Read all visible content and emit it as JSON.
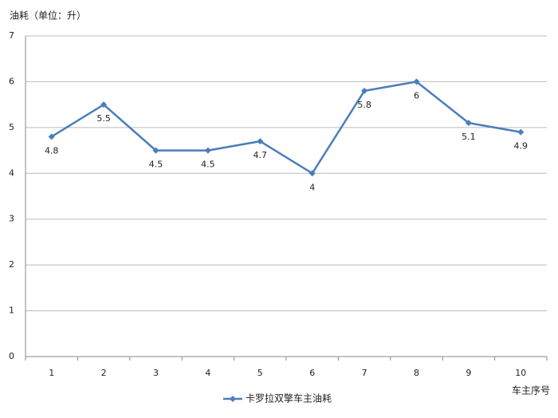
{
  "chart_data": {
    "type": "line",
    "y_label": "油耗（单位：升）",
    "x_label": "车主序号",
    "categories": [
      "1",
      "2",
      "3",
      "4",
      "5",
      "6",
      "7",
      "8",
      "9",
      "10"
    ],
    "series": [
      {
        "name": "卡罗拉双擎车主油耗",
        "color": "#4a7ebb",
        "values": [
          4.8,
          5.5,
          4.5,
          4.5,
          4.7,
          4,
          5.8,
          6,
          5.1,
          4.9
        ]
      }
    ],
    "ylim": [
      0,
      7
    ],
    "yticks": [
      0,
      1,
      2,
      3,
      4,
      5,
      6,
      7
    ],
    "grid": true,
    "legend": "bottom"
  }
}
